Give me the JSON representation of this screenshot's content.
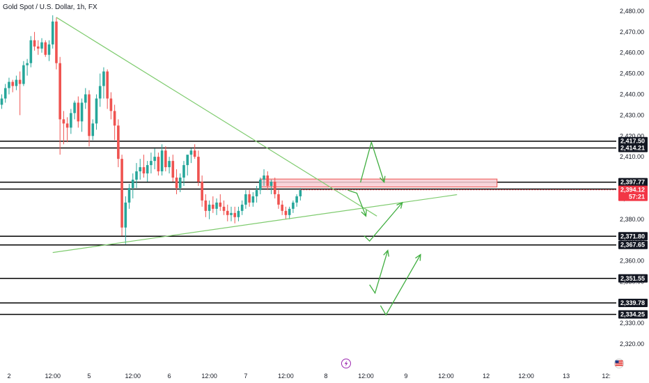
{
  "header": {
    "title": "Gold Spot / U.S. Dollar, 1h, FX"
  },
  "colors": {
    "up": "#26a69a",
    "down": "#ef5350",
    "level": "#000000",
    "trend": "#7ecb6e",
    "zone_fill": "#f8cdd4",
    "zone_stroke": "#ef5350",
    "arrow": "#3fae3f",
    "current": "#f23645"
  },
  "chart_data": {
    "type": "candlestick",
    "symbol": "Gold Spot / U.S. Dollar",
    "interval": "1h",
    "exchange": "FX",
    "y_axis": {
      "ylim": [
        2313,
        2483
      ],
      "ticks": [
        2480,
        2470,
        2460,
        2450,
        2440,
        2430,
        2420,
        2410,
        2390,
        2380,
        2370,
        2360,
        2350,
        2340,
        2330,
        2320
      ]
    },
    "x_axis": {
      "ticks": [
        {
          "label": "2",
          "bar": 2
        },
        {
          "label": "12:00",
          "bar": 14
        },
        {
          "label": "5",
          "bar": 24
        },
        {
          "label": "12:00",
          "bar": 36
        },
        {
          "label": "6",
          "bar": 46
        },
        {
          "label": "12:00",
          "bar": 57
        },
        {
          "label": "7",
          "bar": 67
        },
        {
          "label": "12:00",
          "bar": 78
        },
        {
          "label": "8",
          "bar": 89
        },
        {
          "label": "12:00",
          "bar": 100
        },
        {
          "label": "9",
          "bar": 111
        },
        {
          "label": "12:00",
          "bar": 122
        },
        {
          "label": "12",
          "bar": 133
        },
        {
          "label": "12:00",
          "bar": 144
        },
        {
          "label": "13",
          "bar": 155
        },
        {
          "label": "12:",
          "bar": 166
        }
      ]
    },
    "candles": [
      [
        2435,
        2440,
        2433,
        2438
      ],
      [
        2438,
        2445,
        2436,
        2443
      ],
      [
        2443,
        2448,
        2440,
        2446
      ],
      [
        2446,
        2447,
        2441,
        2444
      ],
      [
        2444,
        2449,
        2442,
        2447
      ],
      [
        2447,
        2451,
        2430,
        2445
      ],
      [
        2445,
        2456,
        2444,
        2454
      ],
      [
        2454,
        2457,
        2449,
        2455
      ],
      [
        2455,
        2468,
        2453,
        2466
      ],
      [
        2466,
        2470,
        2461,
        2463
      ],
      [
        2463,
        2466,
        2459,
        2462
      ],
      [
        2462,
        2467,
        2460,
        2465
      ],
      [
        2465,
        2466,
        2458,
        2459
      ],
      [
        2459,
        2466,
        2456,
        2464
      ],
      [
        2464,
        2478,
        2462,
        2475
      ],
      [
        2475,
        2477,
        2452,
        2455
      ],
      [
        2455,
        2458,
        2411,
        2428
      ],
      [
        2428,
        2432,
        2416,
        2426
      ],
      [
        2426,
        2429,
        2417,
        2424
      ],
      [
        2424,
        2433,
        2421,
        2431
      ],
      [
        2431,
        2437,
        2428,
        2436
      ],
      [
        2436,
        2439,
        2424,
        2427
      ],
      [
        2427,
        2438,
        2422,
        2436
      ],
      [
        2436,
        2443,
        2433,
        2440
      ],
      [
        2440,
        2442,
        2415,
        2420
      ],
      [
        2420,
        2428,
        2418,
        2426
      ],
      [
        2426,
        2440,
        2423,
        2438
      ],
      [
        2438,
        2450,
        2434,
        2444
      ],
      [
        2444,
        2453,
        2438,
        2451
      ],
      [
        2451,
        2452,
        2433,
        2438
      ],
      [
        2438,
        2441,
        2428,
        2432
      ],
      [
        2432,
        2435,
        2418,
        2425
      ],
      [
        2425,
        2428,
        2405,
        2409
      ],
      [
        2409,
        2411,
        2372,
        2376
      ],
      [
        2376,
        2391,
        2368,
        2388
      ],
      [
        2388,
        2397,
        2385,
        2395
      ],
      [
        2395,
        2402,
        2390,
        2399
      ],
      [
        2399,
        2407,
        2395,
        2403
      ],
      [
        2403,
        2409,
        2399,
        2405
      ],
      [
        2405,
        2411,
        2400,
        2402
      ],
      [
        2402,
        2408,
        2398,
        2406
      ],
      [
        2406,
        2412,
        2402,
        2408
      ],
      [
        2408,
        2414,
        2404,
        2410
      ],
      [
        2410,
        2412,
        2401,
        2403
      ],
      [
        2403,
        2416,
        2401,
        2413
      ],
      [
        2413,
        2415,
        2403,
        2405
      ],
      [
        2405,
        2410,
        2402,
        2408
      ],
      [
        2408,
        2411,
        2398,
        2400
      ],
      [
        2400,
        2404,
        2392,
        2395
      ],
      [
        2395,
        2402,
        2393,
        2400
      ],
      [
        2400,
        2408,
        2396,
        2406
      ],
      [
        2406,
        2410,
        2401,
        2411
      ],
      [
        2411,
        2414,
        2407,
        2413
      ],
      [
        2413,
        2416,
        2409,
        2410
      ],
      [
        2410,
        2413,
        2396,
        2398
      ],
      [
        2398,
        2401,
        2386,
        2389
      ],
      [
        2389,
        2392,
        2381,
        2384
      ],
      [
        2384,
        2389,
        2380,
        2387
      ],
      [
        2387,
        2391,
        2383,
        2385
      ],
      [
        2385,
        2390,
        2382,
        2388
      ],
      [
        2388,
        2392,
        2384,
        2386
      ],
      [
        2386,
        2389,
        2382,
        2384
      ],
      [
        2384,
        2387,
        2379,
        2382
      ],
      [
        2382,
        2386,
        2379,
        2383
      ],
      [
        2383,
        2386,
        2378,
        2381
      ],
      [
        2381,
        2386,
        2379,
        2384
      ],
      [
        2384,
        2389,
        2382,
        2387
      ],
      [
        2387,
        2394,
        2385,
        2392
      ],
      [
        2392,
        2394,
        2386,
        2388
      ],
      [
        2388,
        2393,
        2386,
        2391
      ],
      [
        2391,
        2396,
        2388,
        2394
      ],
      [
        2394,
        2400,
        2392,
        2399
      ],
      [
        2399,
        2404,
        2396,
        2401
      ],
      [
        2401,
        2403,
        2394,
        2396
      ],
      [
        2396,
        2399,
        2392,
        2398
      ],
      [
        2398,
        2400,
        2390,
        2392
      ],
      [
        2392,
        2394,
        2385,
        2387
      ],
      [
        2387,
        2389,
        2382,
        2384
      ],
      [
        2384,
        2386,
        2380,
        2382
      ],
      [
        2382,
        2386,
        2380,
        2385
      ],
      [
        2385,
        2389,
        2383,
        2388
      ],
      [
        2388,
        2392,
        2386,
        2391
      ],
      [
        2391,
        2395,
        2389,
        2394
      ]
    ],
    "levels": [
      2417.5,
      2414.21,
      2397.77,
      2394.48,
      2371.8,
      2367.65,
      2351.55,
      2339.78,
      2334.25
    ],
    "level_labels": [
      "2,417.50",
      "2,414.21",
      "2,397.77",
      "2,394.48",
      "2,371.80",
      "2,367.65",
      "2,351.55",
      "2,339.78",
      "2,334.25"
    ],
    "current_price": {
      "price": "2,394.12",
      "countdown": "57:21",
      "value": 2394.12
    },
    "zone": {
      "from_bar": 71,
      "to_bar": 136,
      "low": 2395.5,
      "high": 2399.3
    },
    "trendlines": [
      {
        "p1": [
          15,
          2477
        ],
        "p2": [
          103,
          2381.5
        ]
      },
      {
        "p1": [
          14,
          2364
        ],
        "p2": [
          125,
          2391.8
        ]
      }
    ],
    "projections": [
      [
        [
          95,
          2394.0
        ],
        [
          97.5,
          2392.5
        ],
        [
          100,
          2381.5
        ]
      ],
      [
        [
          98.5,
          2397.7
        ],
        [
          101.5,
          2417.0
        ],
        [
          105,
          2397.8
        ]
      ],
      [
        [
          99.5,
          2372.1
        ],
        [
          101,
          2369.5
        ],
        [
          110,
          2388.0
        ]
      ],
      [
        [
          101,
          2348.5
        ],
        [
          102.5,
          2344.5
        ],
        [
          106,
          2365.0
        ]
      ],
      [
        [
          104,
          2338.5
        ],
        [
          105.5,
          2334.0
        ],
        [
          115,
          2363.0
        ]
      ]
    ]
  }
}
